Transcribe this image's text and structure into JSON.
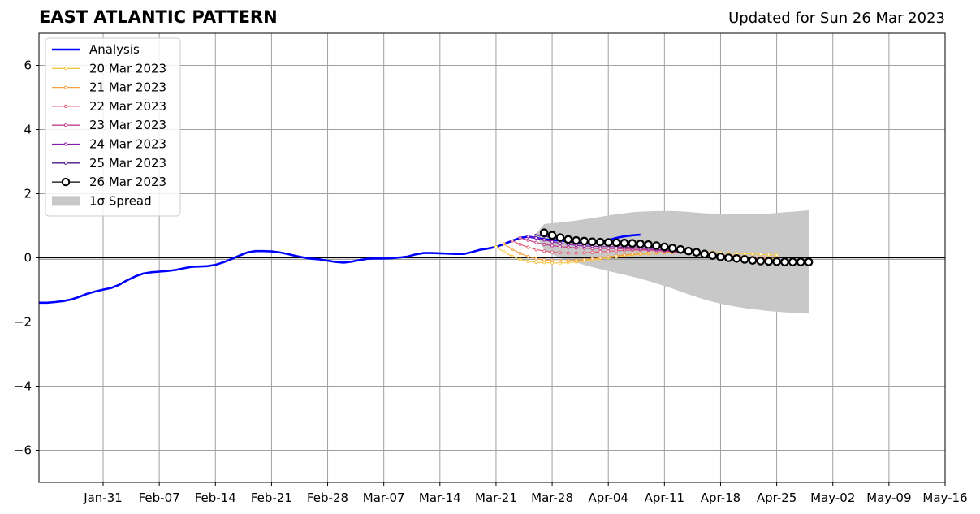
{
  "title": "EAST ATLANTIC PATTERN",
  "subtitle": "Updated for Sun 26 Mar 2023",
  "chart_data": {
    "type": "line",
    "title": "EAST ATLANTIC PATTERN",
    "subtitle": "Updated for Sun 26 Mar 2023",
    "xlabel": "",
    "ylabel": "",
    "xlim": [
      "2023-01-23",
      "2023-05-16"
    ],
    "ylim": [
      -7,
      7
    ],
    "x_ticks": [
      "Jan-31",
      "Feb-07",
      "Feb-14",
      "Feb-21",
      "Feb-28",
      "Mar-07",
      "Mar-14",
      "Mar-21",
      "Mar-28",
      "Apr-04",
      "Apr-11",
      "Apr-18",
      "Apr-25",
      "May-02",
      "May-09",
      "May-16"
    ],
    "y_ticks": [
      "−6",
      "−4",
      "−2",
      "0",
      "2",
      "4",
      "6"
    ],
    "grid": true,
    "legend_position": "top-left",
    "zero_line": true,
    "analysis": {
      "name": "Analysis",
      "color": "#0000ff",
      "points": [
        [
          "2023-01-23",
          -1.4
        ],
        [
          "2023-01-24",
          -1.4
        ],
        [
          "2023-01-25",
          -1.38
        ],
        [
          "2023-01-26",
          -1.35
        ],
        [
          "2023-01-27",
          -1.3
        ],
        [
          "2023-01-28",
          -1.22
        ],
        [
          "2023-01-29",
          -1.12
        ],
        [
          "2023-01-30",
          -1.05
        ],
        [
          "2023-01-31",
          -0.99
        ],
        [
          "2023-02-01",
          -0.94
        ],
        [
          "2023-02-02",
          -0.84
        ],
        [
          "2023-02-03",
          -0.7
        ],
        [
          "2023-02-04",
          -0.58
        ],
        [
          "2023-02-05",
          -0.49
        ],
        [
          "2023-02-06",
          -0.45
        ],
        [
          "2023-02-07",
          -0.43
        ],
        [
          "2023-02-08",
          -0.41
        ],
        [
          "2023-02-09",
          -0.38
        ],
        [
          "2023-02-10",
          -0.33
        ],
        [
          "2023-02-11",
          -0.28
        ],
        [
          "2023-02-12",
          -0.27
        ],
        [
          "2023-02-13",
          -0.26
        ],
        [
          "2023-02-14",
          -0.22
        ],
        [
          "2023-02-15",
          -0.14
        ],
        [
          "2023-02-16",
          -0.04
        ],
        [
          "2023-02-17",
          0.07
        ],
        [
          "2023-02-18",
          0.17
        ],
        [
          "2023-02-19",
          0.21
        ],
        [
          "2023-02-20",
          0.21
        ],
        [
          "2023-02-21",
          0.2
        ],
        [
          "2023-02-22",
          0.17
        ],
        [
          "2023-02-23",
          0.12
        ],
        [
          "2023-02-24",
          0.06
        ],
        [
          "2023-02-25",
          0.01
        ],
        [
          "2023-02-26",
          -0.03
        ],
        [
          "2023-02-27",
          -0.05
        ],
        [
          "2023-02-28",
          -0.09
        ],
        [
          "2023-03-01",
          -0.13
        ],
        [
          "2023-03-02",
          -0.15
        ],
        [
          "2023-03-03",
          -0.12
        ],
        [
          "2023-03-04",
          -0.07
        ],
        [
          "2023-03-05",
          -0.03
        ],
        [
          "2023-03-06",
          -0.02
        ],
        [
          "2023-03-07",
          -0.02
        ],
        [
          "2023-03-08",
          -0.01
        ],
        [
          "2023-03-09",
          0.01
        ],
        [
          "2023-03-10",
          0.04
        ],
        [
          "2023-03-11",
          0.11
        ],
        [
          "2023-03-12",
          0.15
        ],
        [
          "2023-03-13",
          0.15
        ],
        [
          "2023-03-14",
          0.14
        ],
        [
          "2023-03-15",
          0.13
        ],
        [
          "2023-03-16",
          0.12
        ],
        [
          "2023-03-17",
          0.12
        ],
        [
          "2023-03-18",
          0.18
        ],
        [
          "2023-03-19",
          0.25
        ],
        [
          "2023-03-20",
          0.29
        ],
        [
          "2023-03-21",
          0.34
        ],
        [
          "2023-03-22",
          0.43
        ],
        [
          "2023-03-23",
          0.53
        ],
        [
          "2023-03-24",
          0.62
        ],
        [
          "2023-03-25",
          0.66
        ],
        [
          "2023-03-26",
          0.62
        ],
        [
          "2023-03-27",
          0.58
        ],
        [
          "2023-03-28",
          0.55
        ],
        [
          "2023-03-29",
          0.54
        ],
        [
          "2023-03-30",
          0.51
        ],
        [
          "2023-03-31",
          0.48
        ],
        [
          "2023-04-01",
          0.45
        ],
        [
          "2023-04-02",
          0.43
        ],
        [
          "2023-04-03",
          0.48
        ],
        [
          "2023-04-04",
          0.55
        ],
        [
          "2023-04-05",
          0.62
        ],
        [
          "2023-04-06",
          0.67
        ],
        [
          "2023-04-07",
          0.7
        ],
        [
          "2023-04-08",
          0.72
        ]
      ]
    },
    "forecasts": [
      {
        "name": "20 Mar 2023",
        "color": "#f5c842",
        "start": "2023-03-21",
        "values": [
          0.34,
          0.18,
          0.05,
          -0.05,
          -0.11,
          -0.14,
          -0.15,
          -0.16,
          -0.16,
          -0.15,
          -0.13,
          -0.1,
          -0.07,
          -0.03,
          0.0,
          0.03,
          0.06,
          0.09,
          0.11,
          0.13,
          0.15,
          0.16,
          0.17,
          0.18,
          0.18,
          0.18,
          0.18,
          0.17,
          0.16,
          0.15,
          0.14,
          0.13,
          0.12,
          0.11,
          0.1,
          0.09
        ]
      },
      {
        "name": "21 Mar 2023",
        "color": "#f4a040",
        "start": "2023-03-22",
        "values": [
          0.43,
          0.27,
          0.14,
          0.04,
          -0.03,
          -0.07,
          -0.09,
          -0.1,
          -0.09,
          -0.08,
          -0.06,
          -0.03,
          0.0,
          0.03,
          0.06,
          0.09,
          0.11,
          0.13,
          0.15,
          0.16,
          0.17,
          0.17,
          0.17,
          0.16,
          0.15,
          0.14,
          0.12,
          0.1,
          0.08,
          0.06,
          0.04,
          0.02,
          0.0,
          -0.01,
          -0.02
        ]
      },
      {
        "name": "22 Mar 2023",
        "color": "#e0607a",
        "start": "2023-03-23",
        "values": [
          0.53,
          0.42,
          0.33,
          0.26,
          0.21,
          0.18,
          0.16,
          0.15,
          0.15,
          0.16,
          0.17,
          0.19,
          0.2,
          0.22,
          0.23,
          0.24,
          0.24,
          0.24,
          0.23,
          0.22,
          0.2,
          0.18,
          0.16,
          0.14,
          0.12,
          0.1,
          0.08,
          0.06,
          0.04,
          0.02,
          0.0,
          -0.02,
          -0.03
        ]
      },
      {
        "name": "23 Mar 2023",
        "color": "#c0408a",
        "start": "2023-03-24",
        "values": [
          0.62,
          0.55,
          0.48,
          0.42,
          0.38,
          0.35,
          0.33,
          0.31,
          0.3,
          0.29,
          0.29,
          0.29,
          0.28,
          0.28,
          0.27,
          0.26,
          0.25,
          0.23,
          0.21,
          0.19,
          0.17,
          0.15,
          0.13,
          0.11,
          0.09,
          0.07,
          0.05,
          0.03,
          0.01,
          -0.01,
          -0.03
        ]
      },
      {
        "name": "24 Mar 2023",
        "color": "#8a1aa8",
        "start": "2023-03-25",
        "values": [
          0.66,
          0.62,
          0.56,
          0.5,
          0.45,
          0.42,
          0.39,
          0.37,
          0.36,
          0.35,
          0.35,
          0.34,
          0.33,
          0.32,
          0.3,
          0.28,
          0.26,
          0.24,
          0.22,
          0.2,
          0.17,
          0.15,
          0.13,
          0.1,
          0.08,
          0.06,
          0.04,
          0.02,
          0.0
        ]
      },
      {
        "name": "25 Mar 2023",
        "color": "#4a1a8a",
        "start": "2023-03-26",
        "values": [
          0.7,
          0.68,
          0.63,
          0.58,
          0.53,
          0.49,
          0.46,
          0.44,
          0.43,
          0.42,
          0.41,
          0.4,
          0.38,
          0.36,
          0.34,
          0.32,
          0.29,
          0.26,
          0.23,
          0.2,
          0.17,
          0.14,
          0.11,
          0.08,
          0.05,
          0.02
        ]
      },
      {
        "name": "26 Mar 2023",
        "color": "#000000",
        "start": "2023-03-27",
        "marker": "open-circle",
        "values": [
          0.78,
          0.7,
          0.63,
          0.57,
          0.54,
          0.52,
          0.5,
          0.49,
          0.48,
          0.47,
          0.46,
          0.45,
          0.43,
          0.41,
          0.38,
          0.34,
          0.3,
          0.26,
          0.21,
          0.17,
          0.12,
          0.07,
          0.03,
          0.0,
          -0.02,
          -0.05,
          -0.08,
          -0.1,
          -0.11,
          -0.12,
          -0.13,
          -0.13,
          -0.13,
          -0.13
        ]
      }
    ],
    "spread": {
      "name": "1σ Spread",
      "color": "#c8c8c8",
      "start": "2023-03-26",
      "upper": [
        0.75,
        1.05,
        1.08,
        1.1,
        1.13,
        1.16,
        1.2,
        1.24,
        1.28,
        1.32,
        1.36,
        1.39,
        1.42,
        1.44,
        1.45,
        1.46,
        1.46,
        1.46,
        1.45,
        1.43,
        1.41,
        1.39,
        1.38,
        1.37,
        1.36,
        1.36,
        1.36,
        1.36,
        1.37,
        1.38,
        1.4,
        1.42,
        1.44,
        1.46,
        1.48
      ],
      "lower": [
        0.7,
        0.25,
        0.1,
        0.0,
        -0.08,
        -0.15,
        -0.22,
        -0.29,
        -0.35,
        -0.41,
        -0.47,
        -0.53,
        -0.59,
        -0.65,
        -0.72,
        -0.8,
        -0.88,
        -0.96,
        -1.05,
        -1.14,
        -1.22,
        -1.3,
        -1.37,
        -1.43,
        -1.48,
        -1.53,
        -1.57,
        -1.6,
        -1.63,
        -1.66,
        -1.68,
        -1.7,
        -1.72,
        -1.73,
        -1.74
      ]
    }
  }
}
